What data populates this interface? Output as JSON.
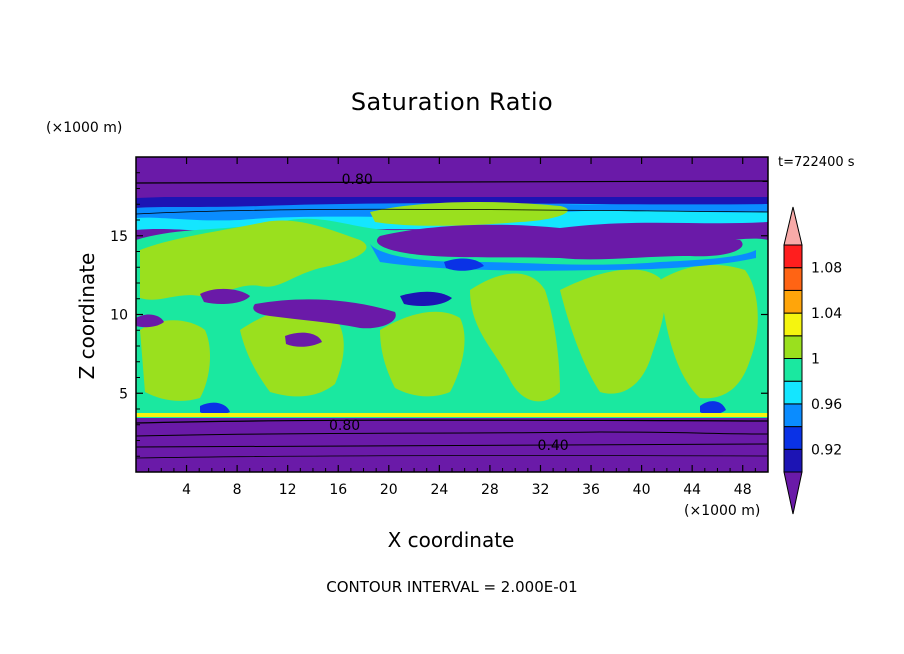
{
  "chart_data": {
    "type": "heatmap",
    "title": "Saturation Ratio",
    "xlabel": "X coordinate",
    "ylabel": "Z coordinate",
    "x_units": "(×1000 m)",
    "y_units": "(×1000 m)",
    "time_label": "t=722400 s",
    "footer": "CONTOUR INTERVAL = 2.000E-01",
    "xlim": [
      0,
      50
    ],
    "ylim": [
      0,
      20
    ],
    "x_ticks": [
      4,
      8,
      12,
      16,
      20,
      24,
      28,
      32,
      36,
      40,
      44,
      48
    ],
    "y_ticks": [
      5,
      10,
      15
    ],
    "contour_labels": [
      {
        "text": "0.80",
        "x": 17.5,
        "z": 18.6
      },
      {
        "text": "0.80",
        "x": 16.5,
        "z": 3.0
      },
      {
        "text": "0.40",
        "x": 33.0,
        "z": 1.7
      }
    ],
    "colorbar": {
      "levels": [
        0.92,
        0.94,
        0.96,
        0.98,
        1.0,
        1.02,
        1.04,
        1.06,
        1.08,
        1.1
      ],
      "labels": [
        "0.92",
        "0.96",
        "1",
        "1.04",
        "1.08"
      ],
      "colors": [
        "#6a1aa8",
        "#1c14b4",
        "#0a32e6",
        "#0a8cff",
        "#14e6ff",
        "#1ae8a0",
        "#9ae01e",
        "#f5f50f",
        "#ffa50a",
        "#ff6414",
        "#ff1e1e",
        "#f8aaa8"
      ]
    }
  }
}
